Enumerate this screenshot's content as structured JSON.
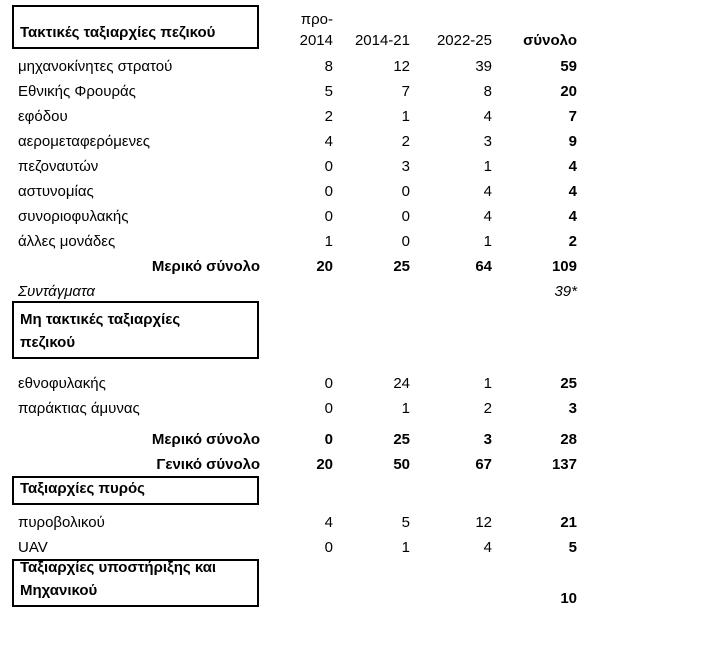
{
  "page": {
    "background_color": "#ffffff",
    "text_color": "#000000",
    "border_color": "#000000"
  },
  "header": {
    "box_title": "Τακτικές ταξιαρχίες πεζικού",
    "col_pre_line1": "προ-",
    "col_pre_line2": "2014",
    "col_mid": "2014-21",
    "col_late": "2022-25",
    "col_total": "σύνολο"
  },
  "regular": {
    "rows": [
      {
        "label": "μηχανοκίνητες στρατού",
        "v1": "8",
        "v2": "12",
        "v3": "39",
        "total": "59"
      },
      {
        "label": "Εθνικής Φρουράς",
        "v1": "5",
        "v2": "7",
        "v3": "8",
        "total": "20"
      },
      {
        "label": "εφόδου",
        "v1": "2",
        "v2": "1",
        "v3": "4",
        "total": "7"
      },
      {
        "label": "αερομεταφερόμενες",
        "v1": "4",
        "v2": "2",
        "v3": "3",
        "total": "9"
      },
      {
        "label": "πεζοναυτών",
        "v1": "0",
        "v2": "3",
        "v3": "1",
        "total": "4"
      },
      {
        "label": "αστυνομίας",
        "v1": "0",
        "v2": "0",
        "v3": "4",
        "total": "4"
      },
      {
        "label": "συνοριοφυλακής",
        "v1": "0",
        "v2": "0",
        "v3": "4",
        "total": "4"
      },
      {
        "label": "άλλες μονάδες",
        "v1": "1",
        "v2": "0",
        "v3": "1",
        "total": "2"
      }
    ],
    "subtotal": {
      "label": "Μερικό σύνολο",
      "v1": "20",
      "v2": "25",
      "v3": "64",
      "total": "109"
    },
    "regiments": {
      "label": "Συντάγματα",
      "total": "39*"
    }
  },
  "irregular": {
    "box_title_line1": "Μη τακτικές ταξιαρχίες",
    "box_title_line2": "πεζικού",
    "rows": [
      {
        "label": "εθνοφυλακής",
        "v1": "0",
        "v2": "24",
        "v3": "1",
        "total": "25"
      },
      {
        "label": "παράκτιας άμυνας",
        "v1": "0",
        "v2": "1",
        "v3": "2",
        "total": "3"
      }
    ],
    "subtotal": {
      "label": "Μερικό σύνολο",
      "v1": "0",
      "v2": "25",
      "v3": "3",
      "total": "28"
    },
    "grand_total": {
      "label": "Γενικό σύνολο",
      "v1": "20",
      "v2": "50",
      "v3": "67",
      "total": "137"
    }
  },
  "fire": {
    "box_title": "Ταξιαρχίες πυρός",
    "rows": [
      {
        "label": "πυροβολικού",
        "v1": "4",
        "v2": "5",
        "v3": "12",
        "total": "21"
      },
      {
        "label": "UAV",
        "v1": "0",
        "v2": "1",
        "v3": "4",
        "total": "5"
      }
    ]
  },
  "support": {
    "box_title_line1": "Ταξιαρχίες υποστήριξης και",
    "box_title_line2": "Μηχανικού",
    "total": "10"
  }
}
